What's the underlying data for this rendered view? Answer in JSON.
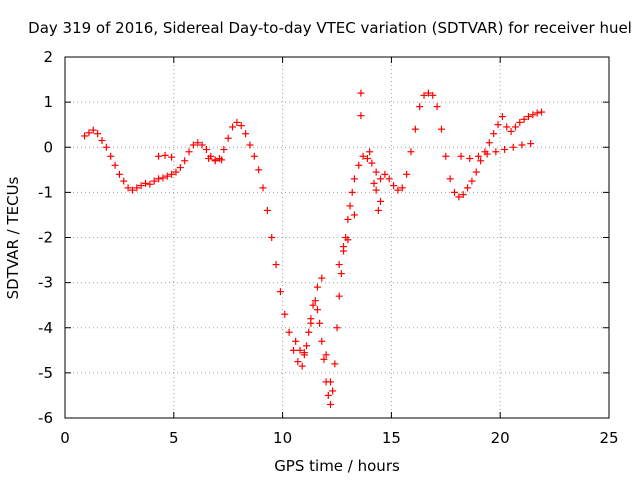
{
  "chart_data": {
    "type": "scatter",
    "title": "Day 319 of 2016, Sidereal Day-to-day VTEC variation (SDTVAR) for receiver huel",
    "xlabel": "GPS time / hours",
    "ylabel": "SDTVAR / TECUs",
    "xlim": [
      0,
      25
    ],
    "ylim": [
      -6,
      2
    ],
    "xticks": [
      "0",
      "5",
      "10",
      "15",
      "20",
      "25"
    ],
    "yticks": [
      "2",
      "1",
      "0",
      "-1",
      "-2",
      "-3",
      "-4",
      "-5",
      "-6"
    ],
    "grid": true,
    "marker": "+",
    "color": "#ff0000",
    "series": [
      {
        "points": [
          [
            0.9,
            0.25
          ],
          [
            1.1,
            0.32
          ],
          [
            1.3,
            0.38
          ],
          [
            1.5,
            0.3
          ],
          [
            1.7,
            0.15
          ],
          [
            1.9,
            0.0
          ],
          [
            2.1,
            -0.2
          ],
          [
            2.3,
            -0.4
          ],
          [
            2.5,
            -0.6
          ],
          [
            2.7,
            -0.75
          ],
          [
            2.9,
            -0.9
          ],
          [
            3.1,
            -0.95
          ],
          [
            3.3,
            -0.9
          ],
          [
            3.5,
            -0.85
          ],
          [
            3.7,
            -0.8
          ],
          [
            3.9,
            -0.82
          ],
          [
            4.1,
            -0.75
          ],
          [
            4.3,
            -0.7
          ],
          [
            4.5,
            -0.68
          ],
          [
            4.7,
            -0.64
          ],
          [
            4.9,
            -0.6
          ],
          [
            5.1,
            -0.55
          ],
          [
            5.3,
            -0.45
          ],
          [
            5.5,
            -0.3
          ],
          [
            5.7,
            -0.1
          ],
          [
            5.9,
            0.05
          ],
          [
            6.1,
            0.1
          ],
          [
            6.3,
            0.05
          ],
          [
            6.5,
            -0.05
          ],
          [
            6.7,
            -0.2
          ],
          [
            6.9,
            -0.28
          ],
          [
            7.1,
            -0.25
          ],
          [
            7.3,
            -0.05
          ],
          [
            7.5,
            0.2
          ],
          [
            7.7,
            0.45
          ],
          [
            7.9,
            0.55
          ],
          [
            8.1,
            0.48
          ],
          [
            8.3,
            0.3
          ],
          [
            8.5,
            0.05
          ],
          [
            8.7,
            -0.2
          ],
          [
            8.9,
            -0.5
          ],
          [
            9.1,
            -0.9
          ],
          [
            9.3,
            -1.4
          ],
          [
            9.5,
            -2.0
          ],
          [
            9.7,
            -2.6
          ],
          [
            9.9,
            -3.2
          ],
          [
            10.1,
            -3.7
          ],
          [
            10.3,
            -4.1
          ],
          [
            10.5,
            -4.5
          ],
          [
            10.7,
            -4.75
          ],
          [
            10.9,
            -4.85
          ],
          [
            11.0,
            -4.6
          ],
          [
            11.1,
            -4.4
          ],
          [
            11.2,
            -4.1
          ],
          [
            11.3,
            -3.8
          ],
          [
            11.4,
            -3.5
          ],
          [
            11.5,
            -3.4
          ],
          [
            11.6,
            -3.6
          ],
          [
            11.7,
            -3.9
          ],
          [
            11.8,
            -4.3
          ],
          [
            11.9,
            -4.7
          ],
          [
            12.0,
            -5.2
          ],
          [
            12.1,
            -5.5
          ],
          [
            12.2,
            -5.7
          ],
          [
            12.3,
            -5.4
          ],
          [
            12.4,
            -4.8
          ],
          [
            12.5,
            -4.0
          ],
          [
            12.6,
            -3.3
          ],
          [
            12.7,
            -2.8
          ],
          [
            12.8,
            -2.3
          ],
          [
            12.9,
            -2.0
          ],
          [
            13.0,
            -1.6
          ],
          [
            13.1,
            -1.3
          ],
          [
            13.2,
            -1.0
          ],
          [
            13.3,
            -0.7
          ],
          [
            13.5,
            -0.4
          ],
          [
            13.7,
            -0.2
          ],
          [
            13.9,
            -0.25
          ],
          [
            14.1,
            -0.35
          ],
          [
            14.3,
            -0.55
          ],
          [
            14.5,
            -0.7
          ],
          [
            14.7,
            -0.6
          ],
          [
            14.9,
            -0.7
          ],
          [
            15.1,
            -0.85
          ],
          [
            15.3,
            -0.95
          ],
          [
            15.5,
            -0.9
          ],
          [
            15.7,
            -0.6
          ],
          [
            15.9,
            -0.1
          ],
          [
            16.1,
            0.4
          ],
          [
            16.3,
            0.9
          ],
          [
            16.5,
            1.15
          ],
          [
            16.7,
            1.2
          ],
          [
            16.9,
            1.15
          ],
          [
            17.1,
            0.9
          ],
          [
            17.3,
            0.4
          ],
          [
            17.5,
            -0.2
          ],
          [
            17.7,
            -0.7
          ],
          [
            17.9,
            -1.0
          ],
          [
            18.1,
            -1.1
          ],
          [
            18.3,
            -1.05
          ],
          [
            18.5,
            -0.9
          ],
          [
            18.7,
            -0.75
          ],
          [
            18.9,
            -0.55
          ],
          [
            19.1,
            -0.3
          ],
          [
            19.3,
            -0.1
          ],
          [
            19.5,
            0.1
          ],
          [
            19.7,
            0.3
          ],
          [
            19.9,
            0.5
          ],
          [
            20.1,
            0.68
          ],
          [
            20.3,
            0.45
          ],
          [
            20.5,
            0.35
          ],
          [
            20.7,
            0.45
          ],
          [
            20.9,
            0.55
          ],
          [
            21.1,
            0.62
          ],
          [
            21.3,
            0.68
          ],
          [
            21.5,
            0.72
          ],
          [
            21.7,
            0.76
          ],
          [
            21.9,
            0.78
          ],
          [
            18.2,
            -0.2
          ],
          [
            18.6,
            -0.25
          ],
          [
            19.0,
            -0.2
          ],
          [
            19.4,
            -0.15
          ],
          [
            19.8,
            -0.1
          ],
          [
            20.2,
            -0.05
          ],
          [
            20.6,
            0.0
          ],
          [
            21.0,
            0.05
          ],
          [
            21.4,
            0.08
          ],
          [
            4.3,
            -0.2
          ],
          [
            4.6,
            -0.18
          ],
          [
            4.9,
            -0.22
          ],
          [
            6.6,
            -0.25
          ],
          [
            6.9,
            -0.3
          ],
          [
            7.2,
            -0.28
          ],
          [
            10.6,
            -4.3
          ],
          [
            10.8,
            -4.5
          ],
          [
            11.0,
            -4.55
          ],
          [
            11.3,
            -3.9
          ],
          [
            11.6,
            -3.1
          ],
          [
            11.8,
            -2.9
          ],
          [
            12.0,
            -4.6
          ],
          [
            12.2,
            -5.2
          ],
          [
            12.6,
            -2.6
          ],
          [
            12.8,
            -2.2
          ],
          [
            13.0,
            -2.05
          ],
          [
            13.3,
            -1.5
          ],
          [
            13.6,
            1.2
          ],
          [
            13.6,
            0.7
          ],
          [
            14.0,
            -0.1
          ],
          [
            14.4,
            -1.4
          ],
          [
            14.5,
            -1.2
          ],
          [
            14.3,
            -0.95
          ],
          [
            14.2,
            -0.8
          ]
        ]
      }
    ]
  }
}
